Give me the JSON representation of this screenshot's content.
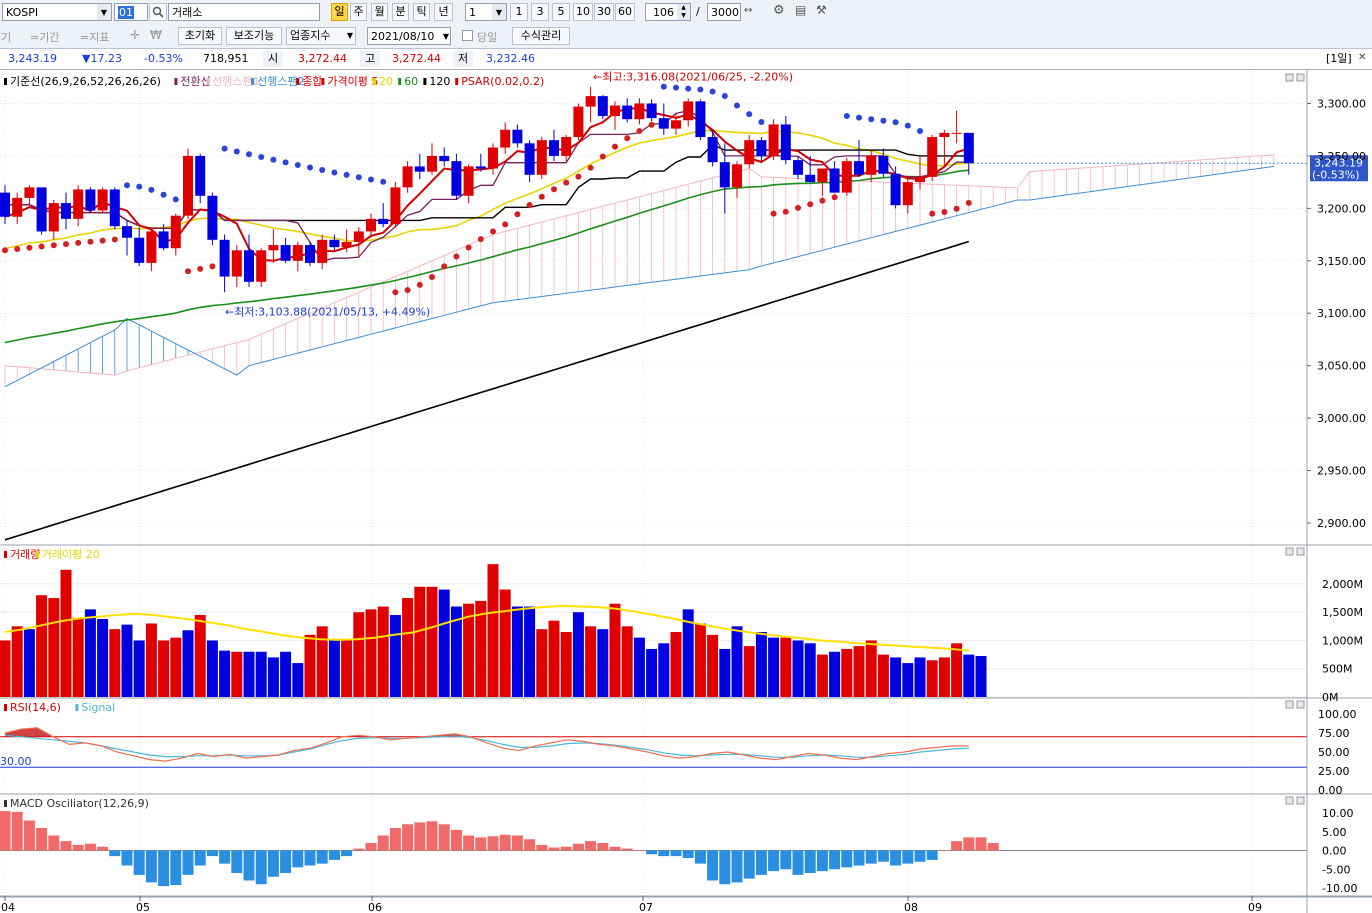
{
  "toolbar": {
    "symbol": "KOSPI",
    "code": "01",
    "exchange": "거래소",
    "period_day": "일",
    "period_buttons": [
      "주",
      "월",
      "분",
      "틱",
      "년"
    ],
    "interval": "1",
    "minute_buttons": [
      "1",
      "3",
      "5",
      "10",
      "30",
      "60"
    ],
    "count": "106",
    "slash": "/",
    "total": "3000",
    "cut_left": "기",
    "period_label": "=기간",
    "indicator_label": "=지표",
    "reset": "초기화",
    "aux": "보조기능",
    "sector_index": "업종지수",
    "date": "2021/08/10",
    "same_day": "당일",
    "formula_mgmt": "수식관리"
  },
  "quote": {
    "price": "3,243.19",
    "change": "▼17.23",
    "change_pct": "-0.53%",
    "volume": "718,951",
    "open_label": "시",
    "open": "3,272.44",
    "high_label": "고",
    "high": "3,272.44",
    "low_label": "저",
    "low": "3,232.46",
    "unit": "[1일]"
  },
  "main_panel": {
    "legend": [
      {
        "text": "기준선(26,9,26,52,26,26,26)",
        "color": "#000000"
      },
      {
        "text": "전환선",
        "color": "#7a1f5c"
      },
      {
        "text": "선행스팬1",
        "color": "#f4b6c2"
      },
      {
        "text": "선행스팬2",
        "color": "#3b8fd9"
      },
      {
        "text": "종합",
        "color": "#d40000"
      },
      {
        "text": "가격이평 5",
        "color": "#d40000"
      },
      {
        "text": "20",
        "color": "#e8d400"
      },
      {
        "text": "60",
        "color": "#1a8f1a"
      },
      {
        "text": "120",
        "color": "#000000"
      },
      {
        "text": "PSAR(0.02,0.2)",
        "color": "#d40000"
      }
    ],
    "high_annotation": "←최고:3,316.08(2021/06/25, -2.20%)",
    "low_annotation": "←최저:3,103.88(2021/05/13, +4.49%)",
    "price_tag": "3,243.19",
    "price_tag_pct": "(-0.53%)",
    "y_ticks": [
      "3,300.00",
      "3,250.00",
      "3,200.00",
      "3,150.00",
      "3,100.00",
      "3,050.00",
      "3,000.00",
      "2,950.00",
      "2,900.00"
    ]
  },
  "volume_panel": {
    "legend": [
      {
        "text": "거래량",
        "color": "#d40000"
      },
      {
        "text": "거래이평 20",
        "color": "#e8d400"
      }
    ],
    "y_ticks": [
      "2,000M",
      "1,500M",
      "1,000M",
      "500M",
      "0M"
    ]
  },
  "rsi_panel": {
    "legend": [
      {
        "text": "RSI(14,6)",
        "color": "#d40000"
      },
      {
        "text": "Signal",
        "color": "#49b8d8"
      }
    ],
    "level_label": "30.00",
    "y_ticks": [
      "100.00",
      "75.00",
      "50.00",
      "25.00",
      "0.00"
    ]
  },
  "macd_panel": {
    "legend": [
      {
        "text": "MACD Osciliator(12,26,9)",
        "color": "#333333"
      }
    ],
    "y_ticks": [
      "10.00",
      "5.00",
      "0.00",
      "-5.00",
      "-10.00"
    ]
  },
  "x_ticks": [
    "04",
    "05",
    "06",
    "07",
    "08",
    "09"
  ],
  "chart_data": {
    "type": "candlestick",
    "ylim": [
      2880,
      3330
    ],
    "candles": [
      [
        3215,
        3222,
        3185,
        3192
      ],
      [
        3192,
        3215,
        3185,
        3210
      ],
      [
        3210,
        3222,
        3203,
        3220
      ],
      [
        3220,
        3220,
        3175,
        3178
      ],
      [
        3178,
        3208,
        3170,
        3205
      ],
      [
        3205,
        3215,
        3180,
        3190
      ],
      [
        3190,
        3222,
        3183,
        3218
      ],
      [
        3218,
        3220,
        3196,
        3198
      ],
      [
        3198,
        3220,
        3195,
        3218
      ],
      [
        3218,
        3220,
        3180,
        3183
      ],
      [
        3183,
        3188,
        3155,
        3172
      ],
      [
        3172,
        3182,
        3145,
        3148
      ],
      [
        3148,
        3182,
        3140,
        3178
      ],
      [
        3178,
        3185,
        3160,
        3162
      ],
      [
        3162,
        3195,
        3155,
        3193
      ],
      [
        3193,
        3257,
        3190,
        3250
      ],
      [
        3250,
        3252,
        3205,
        3212
      ],
      [
        3212,
        3215,
        3165,
        3170
      ],
      [
        3170,
        3175,
        3120,
        3135
      ],
      [
        3135,
        3165,
        3125,
        3160
      ],
      [
        3160,
        3175,
        3125,
        3130
      ],
      [
        3130,
        3162,
        3125,
        3160
      ],
      [
        3160,
        3180,
        3148,
        3165
      ],
      [
        3165,
        3172,
        3148,
        3150
      ],
      [
        3150,
        3168,
        3140,
        3165
      ],
      [
        3165,
        3168,
        3145,
        3148
      ],
      [
        3148,
        3175,
        3142,
        3170
      ],
      [
        3170,
        3175,
        3160,
        3163
      ],
      [
        3163,
        3180,
        3158,
        3168
      ],
      [
        3168,
        3182,
        3155,
        3178
      ],
      [
        3178,
        3195,
        3172,
        3190
      ],
      [
        3190,
        3205,
        3182,
        3185
      ],
      [
        3185,
        3225,
        3182,
        3220
      ],
      [
        3220,
        3245,
        3215,
        3240
      ],
      [
        3240,
        3252,
        3228,
        3235
      ],
      [
        3235,
        3262,
        3232,
        3250
      ],
      [
        3250,
        3258,
        3240,
        3245
      ],
      [
        3245,
        3252,
        3208,
        3212
      ],
      [
        3212,
        3242,
        3205,
        3240
      ],
      [
        3240,
        3252,
        3235,
        3238
      ],
      [
        3238,
        3262,
        3232,
        3258
      ],
      [
        3258,
        3282,
        3252,
        3275
      ],
      [
        3275,
        3280,
        3258,
        3262
      ],
      [
        3262,
        3265,
        3225,
        3232
      ],
      [
        3232,
        3268,
        3228,
        3265
      ],
      [
        3265,
        3275,
        3245,
        3250
      ],
      [
        3250,
        3270,
        3245,
        3268
      ],
      [
        3268,
        3300,
        3265,
        3297
      ],
      [
        3297,
        3316,
        3282,
        3307
      ],
      [
        3307,
        3308,
        3285,
        3288
      ],
      [
        3288,
        3302,
        3275,
        3298
      ],
      [
        3298,
        3305,
        3282,
        3285
      ],
      [
        3285,
        3305,
        3280,
        3300
      ],
      [
        3300,
        3304,
        3283,
        3286
      ],
      [
        3286,
        3300,
        3270,
        3276
      ],
      [
        3276,
        3290,
        3270,
        3284
      ],
      [
        3284,
        3305,
        3278,
        3302
      ],
      [
        3302,
        3304,
        3265,
        3268
      ],
      [
        3268,
        3275,
        3240,
        3244
      ],
      [
        3244,
        3262,
        3195,
        3220
      ],
      [
        3220,
        3245,
        3210,
        3242
      ],
      [
        3242,
        3270,
        3238,
        3265
      ],
      [
        3265,
        3268,
        3245,
        3250
      ],
      [
        3250,
        3285,
        3246,
        3280
      ],
      [
        3280,
        3288,
        3242,
        3246
      ],
      [
        3246,
        3250,
        3228,
        3232
      ],
      [
        3232,
        3250,
        3225,
        3225
      ],
      [
        3225,
        3238,
        3212,
        3238
      ],
      [
        3238,
        3245,
        3215,
        3215
      ],
      [
        3215,
        3248,
        3212,
        3245
      ],
      [
        3245,
        3265,
        3230,
        3232
      ],
      [
        3232,
        3255,
        3225,
        3250
      ],
      [
        3250,
        3257,
        3230,
        3233
      ],
      [
        3233,
        3240,
        3200,
        3203
      ],
      [
        3203,
        3230,
        3195,
        3225
      ],
      [
        3225,
        3250,
        3218,
        3230
      ],
      [
        3230,
        3270,
        3226,
        3268
      ],
      [
        3268,
        3275,
        3240,
        3272
      ],
      [
        3272,
        3293,
        3262,
        3272
      ],
      [
        3272,
        3272,
        3232,
        3243
      ]
    ],
    "volume_millions": [
      1000,
      1250,
      1200,
      1800,
      1750,
      2250,
      1400,
      1550,
      1380,
      1200,
      1280,
      1000,
      1300,
      1000,
      1050,
      1180,
      1450,
      1000,
      820,
      800,
      800,
      800,
      700,
      800,
      600,
      1100,
      1250,
      1000,
      1000,
      1500,
      1550,
      1600,
      1450,
      1750,
      1950,
      1950,
      1900,
      1600,
      1650,
      1700,
      2350,
      1900,
      1600,
      1600,
      1200,
      1350,
      1150,
      1500,
      1250,
      1200,
      1650,
      1250,
      1050,
      850,
      950,
      1150,
      1550,
      1300,
      1100,
      850,
      1250,
      900,
      1150,
      1050,
      1050,
      1000,
      950,
      750,
      800,
      850,
      900,
      1000,
      750,
      700,
      600,
      700,
      650,
      700,
      950,
      750,
      725
    ],
    "volume_up": [
      true,
      true,
      false,
      true,
      true,
      true,
      true,
      false,
      false,
      true,
      false,
      false,
      true,
      true,
      true,
      false,
      true,
      false,
      false,
      true,
      false,
      false,
      false,
      false,
      false,
      true,
      true,
      false,
      true,
      true,
      true,
      true,
      false,
      true,
      true,
      true,
      false,
      false,
      true,
      true,
      true,
      true,
      false,
      false,
      true,
      true,
      true,
      false,
      true,
      false,
      true,
      true,
      false,
      false,
      false,
      true,
      false,
      true,
      true,
      false,
      false,
      true,
      false,
      false,
      true,
      false,
      false,
      true,
      false,
      true,
      true,
      true,
      true,
      false,
      false,
      false,
      true,
      true,
      true,
      false,
      false
    ],
    "volume_ma20": [
      1150,
      1200,
      1270,
      1340,
      1390,
      1420,
      1450,
      1470,
      1450,
      1410,
      1370,
      1320,
      1270,
      1200,
      1150,
      1090,
      1050,
      1020,
      1010,
      1020,
      1050,
      1100,
      1140,
      1230,
      1330,
      1420,
      1480,
      1520,
      1560,
      1590,
      1610,
      1600,
      1590,
      1560,
      1510,
      1450,
      1390,
      1320,
      1260,
      1200,
      1150,
      1110,
      1070,
      1040,
      1000,
      980,
      950,
      930,
      910,
      890,
      870,
      850,
      820
    ],
    "rsi": [
      75,
      80,
      82,
      70,
      60,
      62,
      58,
      50,
      45,
      40,
      38,
      42,
      48,
      44,
      47,
      42,
      44,
      46,
      52,
      55,
      62,
      70,
      72,
      70,
      66,
      68,
      70,
      72,
      74,
      70,
      62,
      55,
      52,
      58,
      62,
      66,
      64,
      60,
      58,
      54,
      50,
      45,
      42,
      44,
      48,
      50,
      46,
      42,
      40,
      44,
      48,
      46,
      42,
      40,
      44,
      48,
      50,
      54,
      56,
      58,
      58
    ],
    "rsi_signal": [
      72,
      70,
      68,
      66,
      64,
      62,
      58,
      54,
      50,
      46,
      44,
      44,
      45,
      45,
      46,
      45,
      45,
      46,
      50,
      54,
      60,
      65,
      68,
      69,
      68,
      68,
      69,
      70,
      71,
      69,
      65,
      60,
      56,
      56,
      58,
      61,
      62,
      61,
      59,
      56,
      53,
      49,
      46,
      45,
      46,
      47,
      47,
      45,
      43,
      43,
      45,
      46,
      45,
      43,
      43,
      45,
      47,
      50,
      52,
      54,
      55
    ],
    "macd_osc": [
      10.5,
      10.3,
      8,
      6,
      4,
      2.5,
      1.5,
      1.8,
      1,
      -1.5,
      -4,
      -6.5,
      -8.5,
      -9.5,
      -9.2,
      -6.5,
      -4,
      -1.5,
      -3.5,
      -6,
      -8,
      -9,
      -7,
      -6,
      -4.5,
      -4,
      -3.5,
      -2.5,
      -1.5,
      0.5,
      2,
      4,
      6,
      7,
      7.5,
      7.8,
      7,
      5.5,
      4,
      3.5,
      3.8,
      4.2,
      4,
      3,
      1.5,
      0.8,
      1,
      1.8,
      2.5,
      2,
      1,
      0.5,
      0,
      -1,
      -1.5,
      -1.5,
      -2,
      -3.5,
      -8,
      -9,
      -8.5,
      -7.5,
      -6.5,
      -5.5,
      -5,
      -6.5,
      -6,
      -5.5,
      -5,
      -4.5,
      -4,
      -3.5,
      -3,
      -4,
      -3.5,
      -3,
      -2.5,
      0,
      2.5,
      3.5,
      3.5,
      2
    ]
  }
}
